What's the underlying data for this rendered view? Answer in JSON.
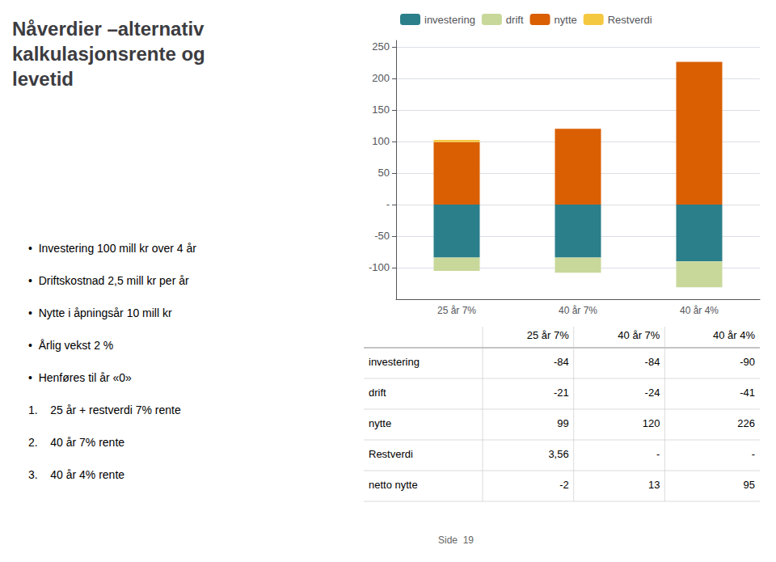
{
  "chart_data": {
    "type": "bar",
    "title": "Nåverdier –alternativ\nkalkulasjonsrente og\nlevetid",
    "categories": [
      "25 år 7%",
      "40 år 7%",
      "40 år 4%"
    ],
    "series": [
      {
        "name": "investering",
        "color": "#2a7f8a",
        "values": [
          -84,
          -84,
          -90
        ]
      },
      {
        "name": "drift",
        "color": "#c8d89a",
        "values": [
          -21,
          -24,
          -41
        ]
      },
      {
        "name": "nytte",
        "color": "#d95f02",
        "values": [
          99,
          120,
          226
        ]
      },
      {
        "name": "Restverdi",
        "color": "#f5c842",
        "values": [
          3.56,
          0,
          0
        ]
      }
    ],
    "stacked": true,
    "ylim": [
      -150,
      260
    ],
    "yticks": [
      -100,
      -50,
      {
        "value": 0,
        "label": "-"
      },
      50,
      100,
      150,
      200,
      250
    ],
    "grid": true,
    "legend": "top",
    "bullet_points": [
      "•  Investering 100 mill kr over 4 år",
      "•  Driftskostnad 2,5 mill kr per år",
      "•  Nytte i åpningsår 10 mill kr",
      "•  Årlig vekst 2 %",
      "•  Henføres til år «0»"
    ],
    "numbered_points": [
      "1.    25 år + restverdi 7% rente",
      "2.    40 år 7% rente",
      "3.    40 år 4% rente"
    ],
    "table": {
      "columns": [
        "25 år 7%",
        "40 år 7%",
        "40 år 4%"
      ],
      "rows": [
        {
          "label": "investering",
          "values": [
            -84,
            -84,
            -90
          ]
        },
        {
          "label": "drift",
          "values": [
            -21,
            -24,
            -41
          ]
        },
        {
          "label": "nytte",
          "values": [
            99,
            120,
            226
          ]
        },
        {
          "label": "Restverdi",
          "values": [
            "3,56",
            "-",
            "-"
          ]
        },
        {
          "label": "netto nytte",
          "values": [
            -2,
            13,
            95
          ]
        }
      ]
    },
    "footer": "Side  19"
  }
}
